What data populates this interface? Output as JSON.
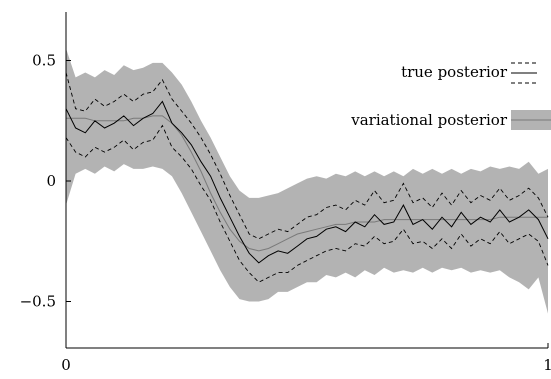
{
  "chart_data": {
    "type": "line",
    "title": "",
    "xlabel": "",
    "ylabel": "",
    "xlim": [
      0,
      1
    ],
    "ylim": [
      -0.7,
      0.7
    ],
    "x_ticks": [
      0,
      1
    ],
    "x_tick_labels": [
      "0",
      "1"
    ],
    "y_ticks": [
      0.5,
      0,
      -0.5
    ],
    "y_tick_labels": [
      "0.5",
      "0",
      "−0.5"
    ],
    "grid": false,
    "legend_position": "top-right",
    "legend": [
      {
        "label": "true posterior",
        "style": "solid line with dashed bounds"
      },
      {
        "label": "variational posterior",
        "style": "gray band with solid line"
      }
    ],
    "x": [
      0.0,
      0.02,
      0.04,
      0.06,
      0.08,
      0.1,
      0.12,
      0.14,
      0.16,
      0.18,
      0.2,
      0.22,
      0.24,
      0.26,
      0.28,
      0.3,
      0.32,
      0.34,
      0.36,
      0.38,
      0.4,
      0.42,
      0.44,
      0.46,
      0.48,
      0.5,
      0.52,
      0.54,
      0.56,
      0.58,
      0.6,
      0.62,
      0.64,
      0.66,
      0.68,
      0.7,
      0.72,
      0.74,
      0.76,
      0.78,
      0.8,
      0.82,
      0.84,
      0.86,
      0.88,
      0.9,
      0.92,
      0.94,
      0.96,
      0.98,
      1.0
    ],
    "series": [
      {
        "name": "true posterior",
        "values": [
          0.3,
          0.22,
          0.2,
          0.25,
          0.22,
          0.24,
          0.27,
          0.23,
          0.26,
          0.28,
          0.33,
          0.24,
          0.2,
          0.15,
          0.08,
          0.02,
          -0.07,
          -0.15,
          -0.23,
          -0.3,
          -0.34,
          -0.31,
          -0.29,
          -0.3,
          -0.27,
          -0.24,
          -0.23,
          -0.2,
          -0.19,
          -0.21,
          -0.17,
          -0.19,
          -0.14,
          -0.18,
          -0.17,
          -0.1,
          -0.18,
          -0.16,
          -0.2,
          -0.15,
          -0.19,
          -0.13,
          -0.18,
          -0.15,
          -0.17,
          -0.12,
          -0.17,
          -0.15,
          -0.12,
          -0.16,
          -0.24
        ],
        "lower": [
          0.18,
          0.12,
          0.1,
          0.14,
          0.12,
          0.14,
          0.17,
          0.13,
          0.16,
          0.17,
          0.23,
          0.14,
          0.1,
          0.05,
          -0.02,
          -0.08,
          -0.17,
          -0.25,
          -0.33,
          -0.38,
          -0.42,
          -0.4,
          -0.38,
          -0.38,
          -0.35,
          -0.33,
          -0.31,
          -0.29,
          -0.28,
          -0.29,
          -0.26,
          -0.27,
          -0.23,
          -0.26,
          -0.25,
          -0.2,
          -0.26,
          -0.25,
          -0.28,
          -0.24,
          -0.28,
          -0.22,
          -0.27,
          -0.24,
          -0.26,
          -0.21,
          -0.26,
          -0.24,
          -0.22,
          -0.25,
          -0.35
        ],
        "upper": [
          0.45,
          0.3,
          0.29,
          0.34,
          0.31,
          0.33,
          0.36,
          0.33,
          0.36,
          0.37,
          0.42,
          0.34,
          0.29,
          0.24,
          0.18,
          0.11,
          0.03,
          -0.06,
          -0.14,
          -0.22,
          -0.24,
          -0.22,
          -0.2,
          -0.21,
          -0.18,
          -0.15,
          -0.14,
          -0.11,
          -0.1,
          -0.12,
          -0.08,
          -0.1,
          -0.04,
          -0.09,
          -0.08,
          -0.01,
          -0.09,
          -0.07,
          -0.11,
          -0.05,
          -0.1,
          -0.04,
          -0.09,
          -0.06,
          -0.08,
          -0.03,
          -0.08,
          -0.06,
          -0.03,
          -0.07,
          -0.15
        ]
      },
      {
        "name": "variational posterior",
        "values": [
          0.26,
          0.26,
          0.26,
          0.25,
          0.25,
          0.25,
          0.25,
          0.26,
          0.26,
          0.27,
          0.27,
          0.24,
          0.19,
          0.12,
          0.04,
          -0.05,
          -0.13,
          -0.2,
          -0.25,
          -0.28,
          -0.29,
          -0.28,
          -0.26,
          -0.24,
          -0.22,
          -0.21,
          -0.2,
          -0.19,
          -0.18,
          -0.18,
          -0.17,
          -0.17,
          -0.17,
          -0.16,
          -0.16,
          -0.16,
          -0.16,
          -0.16,
          -0.16,
          -0.16,
          -0.16,
          -0.16,
          -0.16,
          -0.16,
          -0.16,
          -0.15,
          -0.15,
          -0.15,
          -0.15,
          -0.15,
          -0.15
        ],
        "lower": [
          -0.1,
          0.03,
          0.05,
          0.03,
          0.06,
          0.04,
          0.07,
          0.05,
          0.05,
          0.06,
          0.05,
          0.02,
          -0.05,
          -0.13,
          -0.21,
          -0.29,
          -0.37,
          -0.44,
          -0.49,
          -0.5,
          -0.5,
          -0.49,
          -0.46,
          -0.46,
          -0.44,
          -0.42,
          -0.42,
          -0.39,
          -0.4,
          -0.38,
          -0.4,
          -0.37,
          -0.39,
          -0.36,
          -0.38,
          -0.37,
          -0.38,
          -0.36,
          -0.38,
          -0.36,
          -0.37,
          -0.36,
          -0.38,
          -0.37,
          -0.38,
          -0.37,
          -0.4,
          -0.42,
          -0.45,
          -0.4,
          -0.55
        ],
        "upper": [
          0.55,
          0.43,
          0.45,
          0.43,
          0.46,
          0.44,
          0.48,
          0.46,
          0.47,
          0.49,
          0.49,
          0.45,
          0.4,
          0.33,
          0.25,
          0.18,
          0.1,
          0.02,
          -0.04,
          -0.07,
          -0.07,
          -0.06,
          -0.05,
          -0.03,
          -0.01,
          0.01,
          0.02,
          0.01,
          0.03,
          0.02,
          0.04,
          0.02,
          0.04,
          0.02,
          0.04,
          0.02,
          0.05,
          0.03,
          0.05,
          0.03,
          0.05,
          0.03,
          0.05,
          0.04,
          0.06,
          0.05,
          0.06,
          0.05,
          0.08,
          0.03,
          0.05
        ]
      }
    ],
    "colors": {
      "band": "#b3b3b3",
      "line": "#000000",
      "mean": "#7a7a7a"
    }
  }
}
